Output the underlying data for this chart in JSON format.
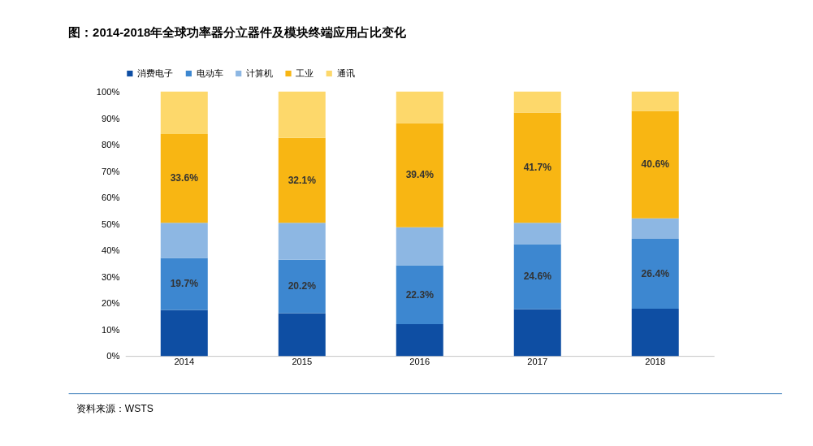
{
  "chart_data": {
    "type": "bar",
    "stacked": true,
    "title": "图：2014-2018年全球功率器分立器件及模块终端应用占比变化",
    "categories": [
      "2014",
      "2015",
      "2016",
      "2017",
      "2018"
    ],
    "series": [
      {
        "name": "消费电子",
        "color": "#0e4ea3",
        "values": [
          17.4,
          16.2,
          12.0,
          17.7,
          17.9
        ]
      },
      {
        "name": "电动车",
        "color": "#3d87d0",
        "values": [
          19.7,
          20.2,
          22.3,
          24.6,
          26.4
        ],
        "value_labels": [
          "19.7%",
          "20.2%",
          "22.3%",
          "24.6%",
          "26.4%"
        ]
      },
      {
        "name": "计算机",
        "color": "#8db7e3",
        "values": [
          13.3,
          14.0,
          14.4,
          8.1,
          7.8
        ]
      },
      {
        "name": "工业",
        "color": "#f8b613",
        "values": [
          33.6,
          32.1,
          39.4,
          41.7,
          40.6
        ],
        "value_labels": [
          "33.6%",
          "32.1%",
          "39.4%",
          "41.7%",
          "40.6%"
        ]
      },
      {
        "name": "通讯",
        "color": "#fdd86b",
        "values": [
          16.0,
          17.5,
          11.9,
          7.9,
          7.3
        ]
      }
    ],
    "ylim": [
      0,
      100
    ],
    "yticks": [
      {
        "value": 0,
        "label": "0%"
      },
      {
        "value": 10,
        "label": "10%"
      },
      {
        "value": 20,
        "label": "20%"
      },
      {
        "value": 30,
        "label": "30%"
      },
      {
        "value": 40,
        "label": "40%"
      },
      {
        "value": 50,
        "label": "50%"
      },
      {
        "value": 60,
        "label": "60%"
      },
      {
        "value": 70,
        "label": "70%"
      },
      {
        "value": 80,
        "label": "80%"
      },
      {
        "value": 90,
        "label": "90%"
      },
      {
        "value": 100,
        "label": "100%"
      }
    ],
    "grid": false,
    "legend": "top",
    "annotations": [
      "资料来源：WSTS"
    ]
  }
}
